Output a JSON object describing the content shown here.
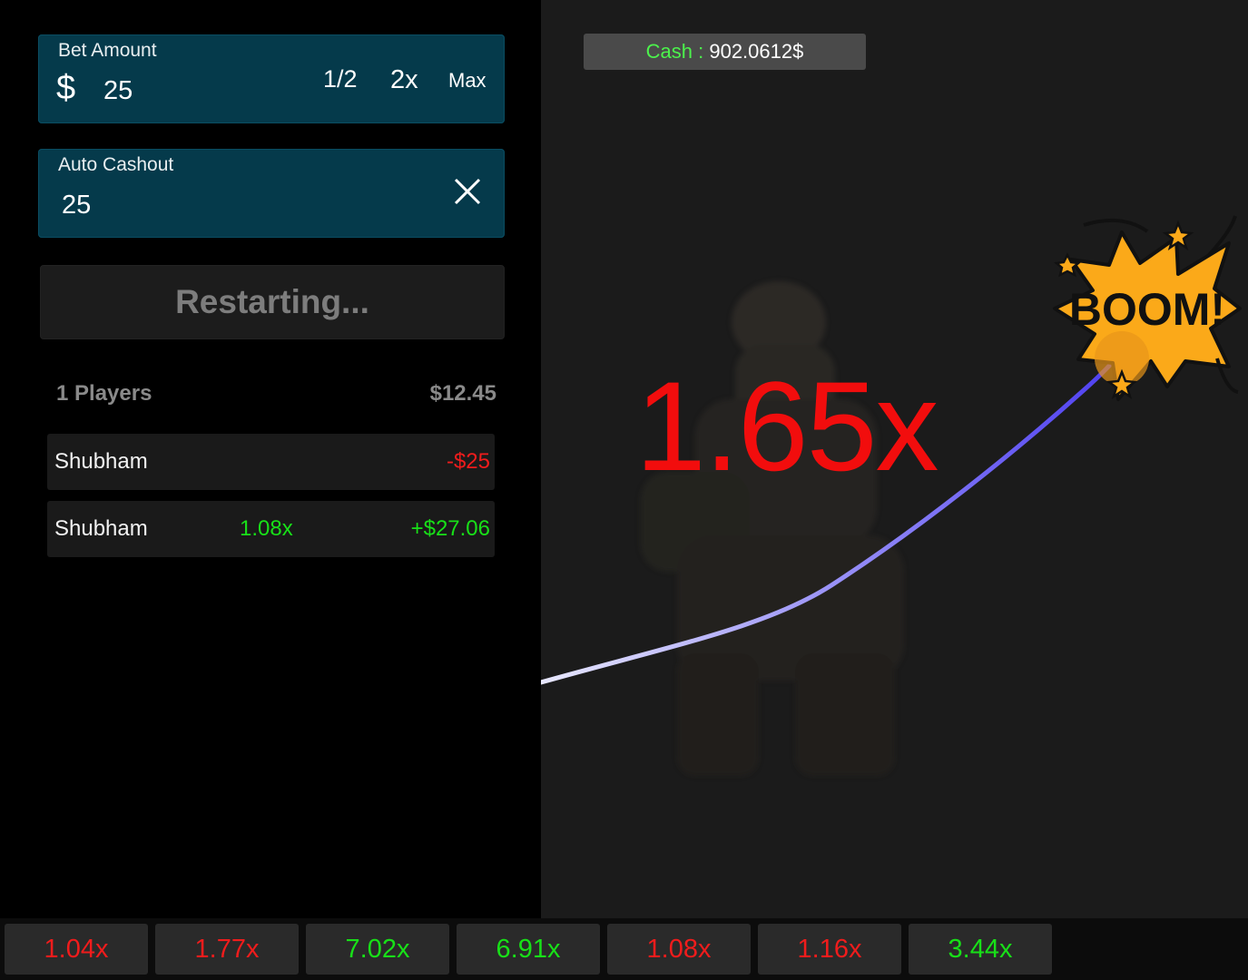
{
  "bet": {
    "label": "Bet Amount",
    "currency_symbol": "$",
    "value": "25",
    "half_label": "1/2",
    "double_label": "2x",
    "max_label": "Max"
  },
  "auto_cashout": {
    "label": "Auto Cashout",
    "value": "25",
    "clear_icon": "close-icon"
  },
  "action_button": {
    "label": "Restarting..."
  },
  "players": {
    "count_label": "1 Players",
    "total": "$12.45",
    "rows": [
      {
        "name": "Shubham",
        "multiplier": "",
        "profit": "-$25",
        "status": "loss"
      },
      {
        "name": "Shubham",
        "multiplier": "1.08x",
        "profit": "+$27.06",
        "status": "gain"
      }
    ]
  },
  "cash": {
    "label": "Cash : ",
    "value": "902.0612$"
  },
  "game": {
    "multiplier": "1.65x",
    "explosion_text": "BOOM!",
    "curve_color_start": "#e8e8ff",
    "curve_color_end": "#4b3cf0"
  },
  "history": [
    {
      "value": "1.04x",
      "color": "#f01c1c"
    },
    {
      "value": "1.77x",
      "color": "#f01c1c"
    },
    {
      "value": "7.02x",
      "color": "#18e018"
    },
    {
      "value": "6.91x",
      "color": "#18e018"
    },
    {
      "value": "1.08x",
      "color": "#f01c1c"
    },
    {
      "value": "1.16x",
      "color": "#f01c1c"
    },
    {
      "value": "3.44x",
      "color": "#18e018"
    }
  ]
}
